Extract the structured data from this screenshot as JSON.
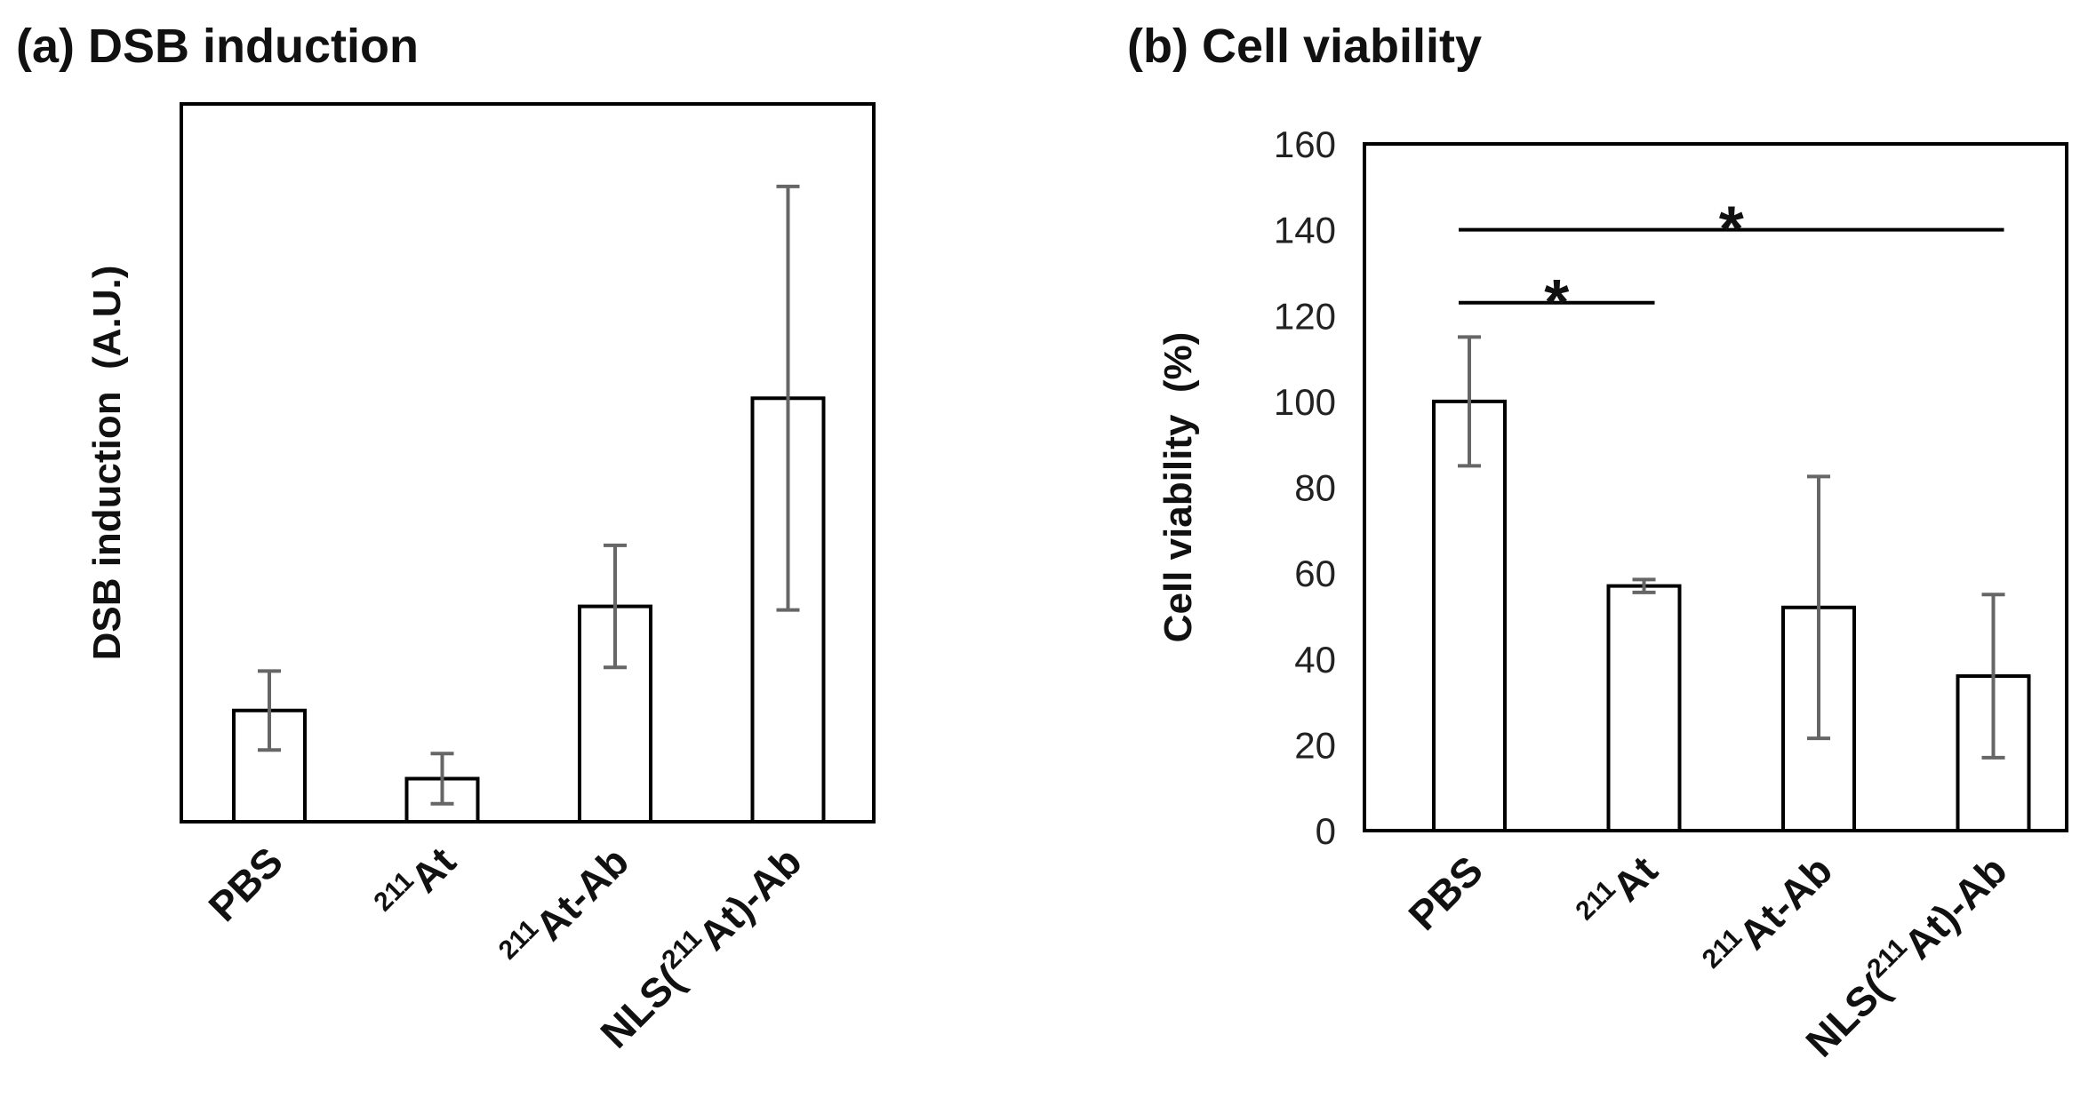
{
  "chart_data": [
    {
      "type": "bar",
      "title": "(a) DSB induction",
      "xlabel": "",
      "ylabel": "DSB induction  (A.U.)",
      "ylim": [
        0,
        1.0
      ],
      "y_ticks_shown": false,
      "categories": [
        {
          "pre": "PBS",
          "sup": "",
          "post": ""
        },
        {
          "pre": "",
          "sup": "211",
          "post": "At"
        },
        {
          "pre": "",
          "sup": "211",
          "post": "At-Ab"
        },
        {
          "pre": "NLS(",
          "sup": "211",
          "post": "At)-Ab"
        }
      ],
      "values": [
        0.155,
        0.06,
        0.3,
        0.59
      ],
      "errors": [
        0.055,
        0.035,
        0.085,
        0.295
      ],
      "significance": []
    },
    {
      "type": "bar",
      "title": "(b) Cell viability",
      "xlabel": "",
      "ylabel": "Cell viability  (%)",
      "ylim": [
        0,
        160
      ],
      "yticks": [
        0,
        20,
        40,
        60,
        80,
        100,
        120,
        140,
        160
      ],
      "y_ticks_shown": true,
      "categories": [
        {
          "pre": "PBS",
          "sup": "",
          "post": ""
        },
        {
          "pre": "",
          "sup": "211",
          "post": "At"
        },
        {
          "pre": "",
          "sup": "211",
          "post": "At-Ab"
        },
        {
          "pre": "NLS(",
          "sup": "211",
          "post": "At)-Ab"
        }
      ],
      "values": [
        100,
        57,
        52,
        36
      ],
      "errors": [
        15,
        1.5,
        30.5,
        19
      ],
      "significance": [
        {
          "from": 0,
          "to": 1,
          "at": 123,
          "label": "*"
        },
        {
          "from": 0,
          "to": 3,
          "at": 140,
          "label": "*"
        }
      ]
    }
  ]
}
